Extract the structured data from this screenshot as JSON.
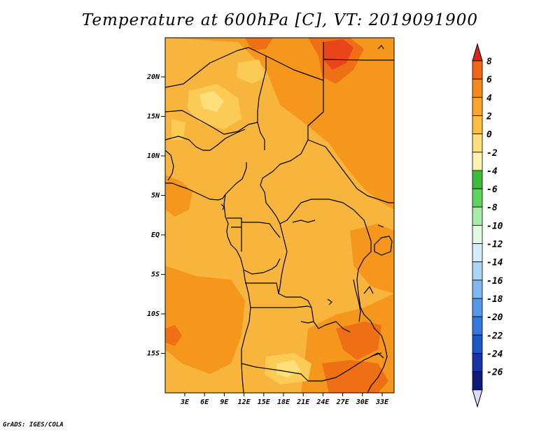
{
  "title": "Temperature at 600hPa [C], VT: 2019091900",
  "credit": "GrADS: IGES/COLA",
  "map": {
    "lat_labels": [
      "20N",
      "15N",
      "10N",
      "5N",
      "EQ",
      "5S",
      "10S",
      "15S"
    ],
    "lon_labels": [
      "3E",
      "6E",
      "9E",
      "12E",
      "15E",
      "18E",
      "21E",
      "24E",
      "27E",
      "30E",
      "33E"
    ],
    "base_color": "#f8b53e"
  },
  "colorbar": {
    "labels": [
      "8",
      "6",
      "4",
      "2",
      "0",
      "-2",
      "-4",
      "-6",
      "-8",
      "-10",
      "-12",
      "-14",
      "-16",
      "-18",
      "-20",
      "-22",
      "-24",
      "-26"
    ],
    "colors": [
      "#e8361a",
      "#f06615",
      "#f58a18",
      "#f9a52c",
      "#fbbe3e",
      "#fde07a",
      "#fff3ad",
      "#3cbb3c",
      "#5fd35f",
      "#a9eca9",
      "#e2fae2",
      "#d6ecfb",
      "#acd5f5",
      "#7fb8ef",
      "#5597e8",
      "#3477de",
      "#1c57c8",
      "#1535a6",
      "#0d1a7a"
    ],
    "top_arrow_color": "#d52518",
    "bottom_arrow_color": "#d8dcf5"
  }
}
